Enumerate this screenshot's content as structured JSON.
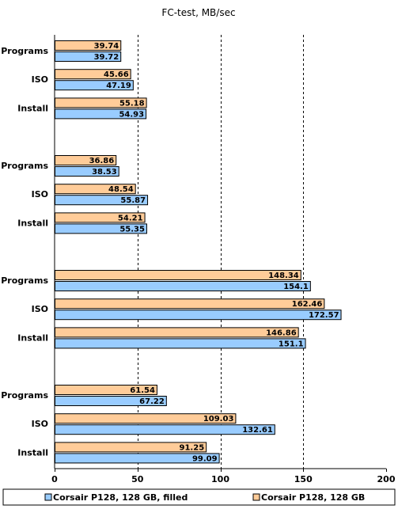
{
  "chart_data": {
    "type": "bar",
    "orientation": "horizontal",
    "title": "FC-test, MB/sec",
    "xlabel": "",
    "ylabel": "",
    "xlim": [
      0,
      200
    ],
    "x_ticks": [
      "0",
      "50",
      "100",
      "150",
      "200"
    ],
    "grid": "vertical dashed",
    "legend_position": "bottom",
    "groups": [
      {
        "categories": [
          "Programs",
          "ISO",
          "Install"
        ],
        "series": [
          {
            "name": "Corsair P128, 128 GB",
            "values": [
              "39.74",
              "45.66",
              "55.18"
            ]
          },
          {
            "name": "Corsair P128, 128 GB, filled",
            "values": [
              "39.72",
              "47.19",
              "54.93"
            ]
          }
        ]
      },
      {
        "categories": [
          "Programs",
          "ISO",
          "Install"
        ],
        "series": [
          {
            "name": "Corsair P128, 128 GB",
            "values": [
              "36.86",
              "48.54",
              "54.21"
            ]
          },
          {
            "name": "Corsair P128, 128 GB, filled",
            "values": [
              "38.53",
              "55.87",
              "55.35"
            ]
          }
        ]
      },
      {
        "categories": [
          "Programs",
          "ISO",
          "Install"
        ],
        "series": [
          {
            "name": "Corsair P128, 128 GB",
            "values": [
              "148.34",
              "162.46",
              "146.86"
            ]
          },
          {
            "name": "Corsair P128, 128 GB, filled",
            "values": [
              "154.1",
              "172.57",
              "151.1"
            ]
          }
        ]
      },
      {
        "categories": [
          "Programs",
          "ISO",
          "Install"
        ],
        "series": [
          {
            "name": "Corsair P128, 128 GB",
            "values": [
              "61.54",
              "109.03",
              "91.25"
            ]
          },
          {
            "name": "Corsair P128, 128 GB, filled",
            "values": [
              "67.22",
              "132.61",
              "99.09"
            ]
          }
        ]
      }
    ],
    "legend": [
      {
        "name": "Corsair P128, 128 GB, filled",
        "color": "#99ccff"
      },
      {
        "name": "Corsair P128, 128 GB",
        "color": "#ffcc99"
      }
    ],
    "colors": {
      "series_top": "#ffcc99",
      "series_bottom": "#99ccff",
      "bar_border": "#000000",
      "grid": "#000000"
    }
  }
}
